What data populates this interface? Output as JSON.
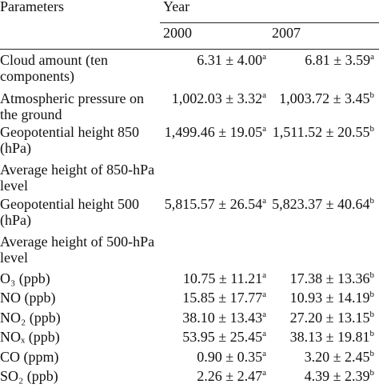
{
  "table": {
    "header": {
      "parameters": "Parameters",
      "year": "Year",
      "columns": [
        "2000",
        "2007"
      ]
    },
    "rows": [
      {
        "parameter": [
          "Cloud amount (ten",
          "components)"
        ],
        "values": [
          {
            "value": "6.31 ± 4.00",
            "note": "a"
          },
          {
            "value": "6.81 ± 3.59",
            "note": "a"
          }
        ]
      },
      {
        "parameter": [
          "Atmospheric pressure on",
          "the ground"
        ],
        "values": [
          {
            "value": "1,002.03 ± 3.32",
            "note": "a"
          },
          {
            "value": "1,003.72 ± 3.45",
            "note": "b"
          }
        ]
      },
      {
        "parameter": [
          "Geopotential height 850",
          "(hPa)"
        ],
        "values": [
          {
            "value": "1,499.46 ± 19.05",
            "note": "a"
          },
          {
            "value": "1,511.52 ± 20.55",
            "note": "b"
          }
        ]
      },
      {
        "parameter": [
          "Average height of 850-hPa",
          "level"
        ],
        "values": []
      },
      {
        "parameter": [
          "Geopotential height 500",
          "(hPa)"
        ],
        "values": [
          {
            "value": "5,815.57 ± 26.54",
            "note": "a"
          },
          {
            "value": "5,823.37 ± 40.64",
            "note": "b"
          }
        ]
      },
      {
        "parameter": [
          "Average height of 500-hPa",
          "level"
        ],
        "values": []
      },
      {
        "parameter": [
          "O₃ (ppb)"
        ],
        "values": [
          {
            "value": "10.75 ± 11.21",
            "note": "a"
          },
          {
            "value": "17.38 ± 13.36",
            "note": "b"
          }
        ]
      },
      {
        "parameter": [
          "NO (ppb)"
        ],
        "values": [
          {
            "value": "15.85 ± 17.77",
            "note": "a"
          },
          {
            "value": "10.93 ± 14.19",
            "note": "b"
          }
        ]
      },
      {
        "parameter": [
          "NO₂ (ppb)"
        ],
        "values": [
          {
            "value": "38.10 ± 13.43",
            "note": "a"
          },
          {
            "value": "27.20 ± 13.15",
            "note": "b"
          }
        ]
      },
      {
        "parameter": [
          "NOₓ (ppb)"
        ],
        "values": [
          {
            "value": "53.95 ± 25.45",
            "note": "a"
          },
          {
            "value": "38.13 ± 19.81",
            "note": "b"
          }
        ]
      },
      {
        "parameter": [
          "CO (ppm)"
        ],
        "values": [
          {
            "value": "0.90 ± 0.35",
            "note": "a"
          },
          {
            "value": "3.20 ± 2.45",
            "note": "b"
          }
        ]
      },
      {
        "parameter": [
          "SO₂ (ppb)"
        ],
        "values": [
          {
            "value": "2.26 ± 2.47",
            "note": "a"
          },
          {
            "value": "4.39 ± 2.39",
            "note": "b"
          }
        ]
      }
    ]
  }
}
